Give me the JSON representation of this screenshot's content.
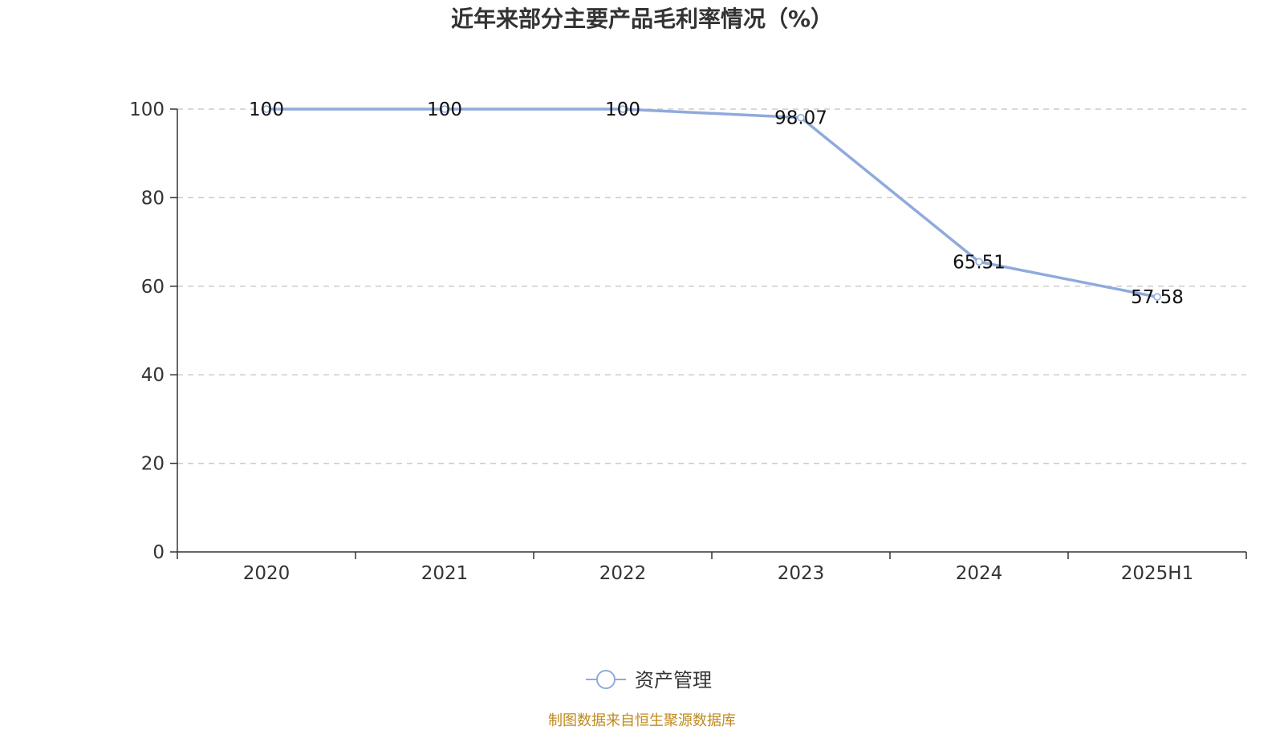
{
  "chart_data": {
    "type": "line",
    "title": "近年来部分主要产品毛利率情况（%）",
    "categories": [
      "2020",
      "2021",
      "2022",
      "2023",
      "2024",
      "2025H1"
    ],
    "series": [
      {
        "name": "资产管理",
        "values": [
          100,
          100,
          100,
          98.07,
          65.51,
          57.58
        ]
      }
    ],
    "data_labels": [
      "100",
      "100",
      "100",
      "98.07",
      "65.51",
      "57.58"
    ],
    "ylim": [
      0,
      100
    ],
    "yticks": [
      "0",
      "20",
      "40",
      "60",
      "80",
      "100"
    ],
    "grid": "horizontal-dashed",
    "legend_position": "bottom-center",
    "xlabel": "",
    "ylabel": ""
  },
  "colors": {
    "series": "#8faadc",
    "grid": "#cccccc",
    "axis": "#333333",
    "source": "#c08a1e"
  },
  "footer": {
    "source": "制图数据来自恒生聚源数据库"
  }
}
